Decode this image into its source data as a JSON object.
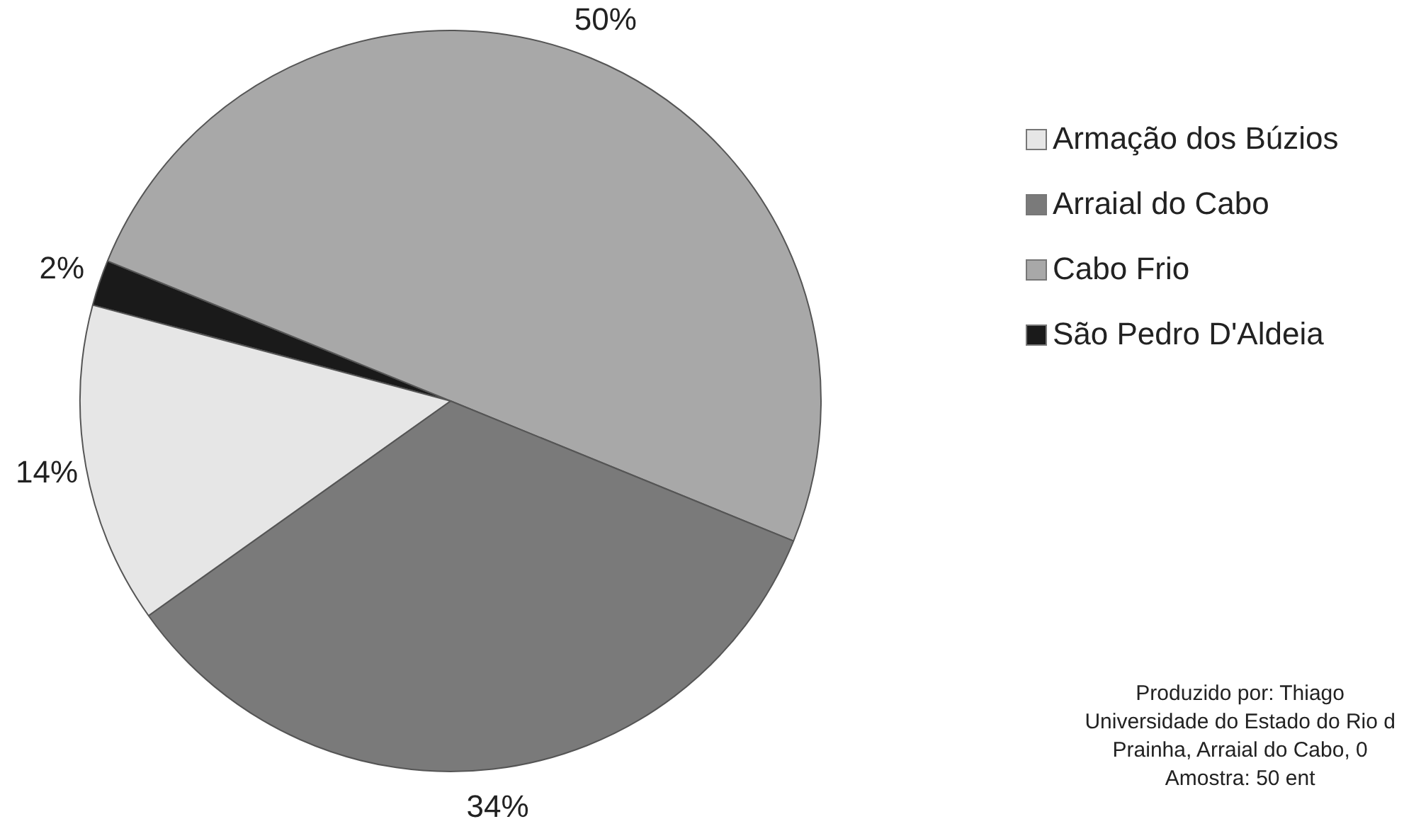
{
  "chart_data": {
    "type": "pie",
    "categories": [
      "Armação dos Búzios",
      "Arraial do Cabo",
      "Cabo Frio",
      "São Pedro D'Aldeia"
    ],
    "values": [
      14,
      34,
      50,
      2
    ],
    "colors": [
      "#e6e6e6",
      "#7a7a7a",
      "#a8a8a8",
      "#1a1a1a"
    ],
    "value_labels": [
      "14%",
      "34%",
      "50%",
      "2%"
    ],
    "legend": "right",
    "annotations": [
      "Produzido por: Thiago",
      "Universidade do Estado do  Rio d",
      "Prainha, Arraial do Cabo, 0",
      "Amostra: 50 ent"
    ]
  }
}
